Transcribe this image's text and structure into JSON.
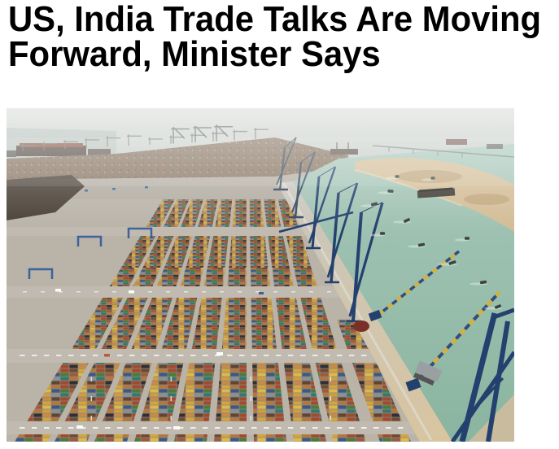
{
  "article": {
    "headline": "US, India Trade Talks Are Moving Forward, Minister Says",
    "headline_lines": [
      "US, India Trade Talks Are Moving",
      "Forward, Minister Says"
    ],
    "headline_color": "#000000"
  },
  "page": {
    "background": "#ffffff"
  },
  "hero_image": {
    "alt": "Aerial view of a container port: long rows of multicolored shipping containers, blue gantry cranes along a diagonal quay, teal harbor water with tugboats and barges, a sandy spit and hazy horizon with distant cranes and ships",
    "palette": {
      "sky_top": "#d5d9d5",
      "sky_bottom": "#c4cbc6",
      "water_top": "#a6c6b8",
      "water_bottom": "#8ab5a0",
      "sand": "#d3bd97",
      "sand_dark": "#b3966a",
      "ground": "#b9b3a8",
      "road_band": "#c0bab0",
      "quay_top": "#c9c6be",
      "quay_bottom": "#d8c5a0",
      "dirt": "#3f352b",
      "distant_dense": "#83705f",
      "distant_road": "#b2aca1",
      "sea_left": "#b8c3bd",
      "silhouette": "#6d736e",
      "crane_navy": "#23406e",
      "crane_far": "#32465c",
      "crane_yellow": "#d9af34",
      "crane_blue": "#2c4f86",
      "rmg_blue": "#2f5a9a",
      "boat_dark": "#3c4440",
      "wake": "#e8efe9",
      "dash_white": "#f2f0ea",
      "gap": "#8e877c",
      "containers": [
        "#d2a53e",
        "#b5763a",
        "#a34a2e",
        "#6e4a32",
        "#e0b84a",
        "#3a5a85",
        "#4e7a3a",
        "#9c5a40",
        "#caa046",
        "#8a8f96",
        "#2f7a74",
        "#b5763a",
        "#c78a4a",
        "#5e4632",
        "#a34a2e",
        "#2e3038"
      ]
    }
  }
}
